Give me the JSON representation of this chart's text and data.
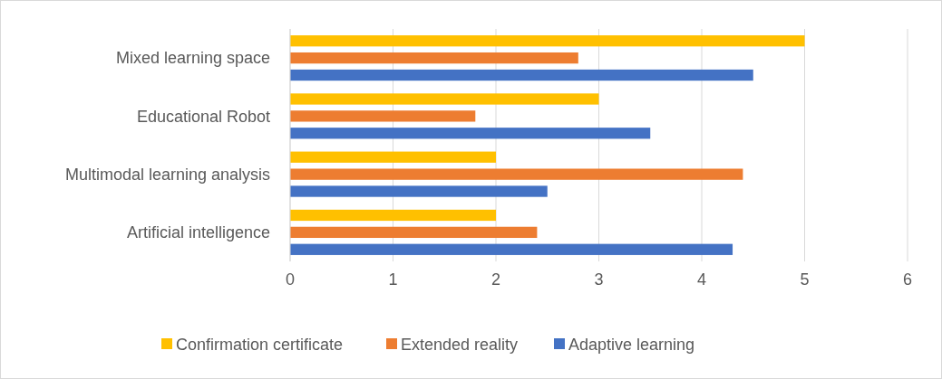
{
  "chart_data": {
    "type": "bar",
    "orientation": "horizontal",
    "categories": [
      "Mixed learning space",
      "Educational Robot",
      "Multimodal learning analysis",
      "Artificial intelligence"
    ],
    "series": [
      {
        "name": "Confirmation certificate",
        "color": "#ffc000",
        "values": [
          5,
          3,
          2,
          2
        ]
      },
      {
        "name": "Extended reality",
        "color": "#ed7d31",
        "values": [
          2.8,
          1.8,
          4.4,
          2.4
        ]
      },
      {
        "name": "Adaptive learning",
        "color": "#4472c4",
        "values": [
          4.5,
          3.5,
          2.5,
          4.3
        ]
      }
    ],
    "xlim": [
      0,
      6
    ],
    "xticks": [
      0,
      1,
      2,
      3,
      4,
      5,
      6
    ],
    "grid": "x",
    "legend": "bottom"
  }
}
